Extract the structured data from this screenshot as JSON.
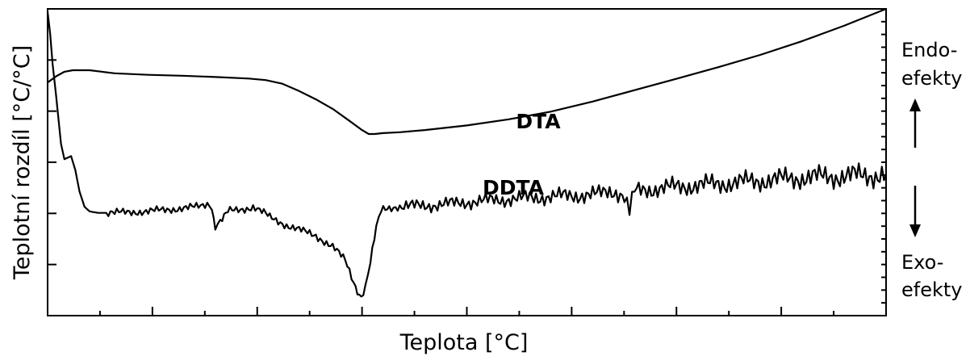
{
  "chart_data": {
    "type": "line",
    "xlabel": "Teplota [°C]",
    "ylabel": "Teplotní rozdíl [°C/°C]",
    "xlim": [
      0,
      100
    ],
    "ylim": [
      0,
      100
    ],
    "grid": false,
    "series": [
      {
        "name": "DTA",
        "x": [
          0,
          1,
          2,
          3,
          5,
          8,
          12,
          16,
          20,
          24,
          26,
          28,
          30,
          32,
          34,
          36,
          37.5,
          38.3,
          39,
          40,
          42,
          45,
          50,
          55,
          60,
          65,
          70,
          75,
          80,
          85,
          90,
          95,
          100
        ],
        "y": [
          76,
          78,
          79.5,
          80,
          80,
          79,
          78.5,
          78.2,
          77.8,
          77.3,
          76.8,
          75.6,
          73.2,
          70.5,
          67.4,
          63.5,
          60.5,
          59.2,
          59.2,
          59.5,
          59.8,
          60.5,
          62,
          64,
          66.5,
          69.8,
          73.5,
          77.2,
          81,
          85,
          89.5,
          94.5,
          100
        ]
      },
      {
        "name": "DDTA",
        "x": [
          0,
          0.3,
          0.6,
          1,
          1.6,
          2,
          2.8,
          3.3,
          3.8,
          4.4,
          5,
          6,
          7,
          8,
          10,
          12,
          14,
          16,
          18,
          19.3,
          19.6,
          20,
          20.6,
          21.5,
          23,
          24.5,
          25.3,
          26.5,
          28.5,
          30,
          32,
          34,
          35.5,
          36.5,
          37.4,
          37.9,
          38.5,
          39.2,
          39.8,
          40.5,
          41.5,
          43,
          46,
          50,
          55,
          60,
          65,
          68.8,
          69.4,
          70,
          71,
          75,
          80,
          85,
          90,
          95,
          100
        ],
        "y": [
          99,
          92,
          82,
          72,
          56,
          51,
          52,
          47.5,
          40.5,
          35.5,
          34,
          33.5,
          33.5,
          33.5,
          33.8,
          34,
          34.5,
          35,
          35.5,
          36,
          34,
          29,
          31.5,
          34,
          34.5,
          35.5,
          35,
          32,
          29.5,
          28,
          26,
          22.5,
          18,
          11,
          5,
          9,
          17,
          29,
          34,
          35,
          35.5,
          35.7,
          36,
          37,
          38,
          38.8,
          39.5,
          40,
          35,
          40.5,
          41,
          42,
          43,
          44,
          45,
          45.5,
          46
        ]
      }
    ],
    "annotations": {
      "dta_label": "DTA",
      "ddta_label": "DDTA",
      "endo_line1": "Endo-",
      "endo_line2": "efekty",
      "exo_line1": "Exo-",
      "exo_line2": "efekty"
    }
  }
}
